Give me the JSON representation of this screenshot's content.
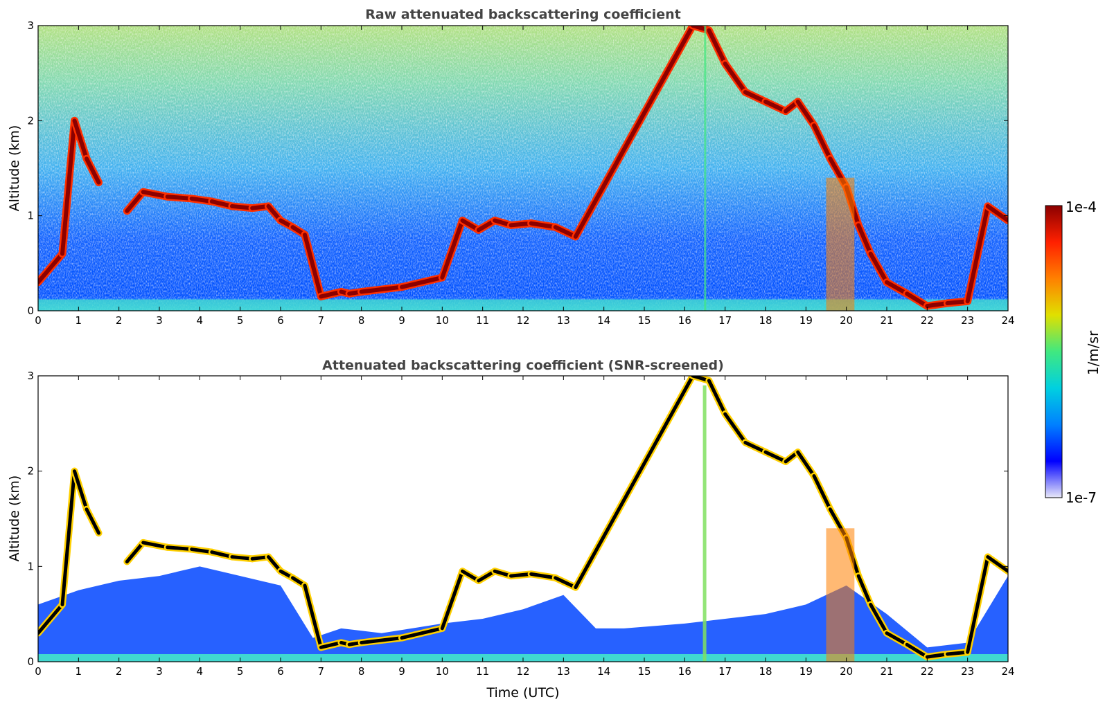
{
  "colormap": [
    "#e8e8f8",
    "#0000ff",
    "#0080ff",
    "#00d0e0",
    "#40e880",
    "#e0e000",
    "#ff8000",
    "#ff2000",
    "#8b0000"
  ],
  "colorbar": {
    "label": "1/m/sr",
    "max_label": "1e-4",
    "min_label": "1e-7"
  },
  "chart_data": [
    {
      "type": "heatmap",
      "title": "Raw attenuated backscattering coefficient",
      "xlabel": "",
      "ylabel": "Altitude (km)",
      "xlim": [
        0,
        24
      ],
      "ylim": [
        0,
        3
      ],
      "xticks": [
        "0",
        "1",
        "2",
        "3",
        "4",
        "5",
        "6",
        "7",
        "8",
        "9",
        "10",
        "11",
        "12",
        "13",
        "14",
        "15",
        "16",
        "17",
        "18",
        "19",
        "20",
        "21",
        "22",
        "23",
        "24"
      ],
      "yticks": [
        "0",
        "1",
        "2",
        "3"
      ],
      "cloud_layer": {
        "t": [
          0.0,
          0.6,
          0.9,
          1.2,
          1.5,
          1.8,
          2.2,
          2.6,
          3.2,
          3.8,
          4.3,
          4.8,
          5.3,
          5.7,
          6.0,
          6.3,
          6.6,
          7.0,
          7.5,
          7.7,
          8.0,
          9.0,
          10.0,
          10.5,
          10.9,
          11.3,
          11.7,
          12.2,
          12.8,
          13.3,
          16.2,
          16.6,
          17.0,
          17.5,
          18.0,
          18.5,
          18.8,
          19.2,
          19.6,
          20.0,
          20.3,
          20.6,
          21.0,
          21.5,
          22.0,
          22.5,
          23.0,
          23.5,
          24.0
        ],
        "alt": [
          0.3,
          0.6,
          2.0,
          1.6,
          1.35,
          null,
          1.05,
          1.25,
          1.2,
          1.18,
          1.15,
          1.1,
          1.08,
          1.1,
          0.95,
          0.88,
          0.8,
          0.15,
          0.2,
          0.18,
          0.2,
          0.25,
          0.35,
          0.95,
          0.85,
          0.95,
          0.9,
          0.92,
          0.88,
          0.78,
          3.0,
          2.95,
          2.6,
          2.3,
          2.2,
          2.1,
          2.2,
          1.95,
          1.6,
          1.3,
          0.9,
          0.6,
          0.3,
          0.18,
          0.05,
          0.08,
          0.1,
          1.1,
          0.95
        ],
        "intensity_range": [
          "1e-7",
          "1e-4"
        ]
      }
    },
    {
      "type": "heatmap",
      "title": "Attenuated backscattering coefficient (SNR-screened)",
      "xlabel": "Time (UTC)",
      "ylabel": "Altitude (km)",
      "xlim": [
        0,
        24
      ],
      "ylim": [
        0,
        3
      ],
      "xticks": [
        "0",
        "1",
        "2",
        "3",
        "4",
        "5",
        "6",
        "7",
        "8",
        "9",
        "10",
        "11",
        "12",
        "13",
        "14",
        "15",
        "16",
        "17",
        "18",
        "19",
        "20",
        "21",
        "22",
        "23",
        "24"
      ],
      "yticks": [
        "0",
        "1",
        "2",
        "3"
      ],
      "boundary_layer_top_km": {
        "t": [
          0.0,
          1.0,
          2.0,
          3.0,
          4.0,
          5.0,
          6.0,
          6.8,
          7.5,
          8.5,
          10.0,
          11.0,
          12.0,
          13.0,
          13.8,
          14.5,
          16.0,
          17.0,
          18.0,
          19.0,
          20.0,
          21.0,
          22.0,
          23.0,
          24.0
        ],
        "alt": [
          0.6,
          0.75,
          0.85,
          0.9,
          1.0,
          0.9,
          0.8,
          0.25,
          0.35,
          0.3,
          0.4,
          0.45,
          0.55,
          0.7,
          0.35,
          0.35,
          0.4,
          0.45,
          0.5,
          0.6,
          0.8,
          0.5,
          0.15,
          0.2,
          0.9
        ]
      }
    }
  ]
}
